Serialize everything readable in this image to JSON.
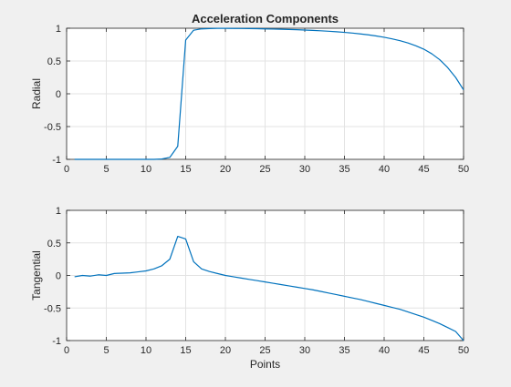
{
  "chart_data": [
    {
      "type": "line",
      "title": "Acceleration Components",
      "xlabel": "",
      "ylabel": "Radial",
      "xlim": [
        0,
        50
      ],
      "ylim": [
        -1,
        1
      ],
      "xticks": [
        "0",
        "5",
        "10",
        "15",
        "20",
        "25",
        "30",
        "35",
        "40",
        "45",
        "50"
      ],
      "yticks": [
        "-1",
        "-0.5",
        "0",
        "0.5",
        "1"
      ],
      "grid": true,
      "series": [
        {
          "color": "#0072bd",
          "x": [
            1,
            2,
            3,
            4,
            5,
            6,
            7,
            8,
            9,
            10,
            11,
            12,
            13,
            14,
            15,
            16,
            17,
            18,
            19,
            20,
            21,
            22,
            23,
            24,
            25,
            26,
            27,
            28,
            29,
            30,
            31,
            32,
            33,
            34,
            35,
            36,
            37,
            38,
            39,
            40,
            41,
            42,
            43,
            44,
            45,
            46,
            47,
            48,
            49,
            50
          ],
          "y": [
            -1,
            -1,
            -1,
            -1,
            -1,
            -1,
            -1,
            -1,
            -1,
            -1,
            -1,
            -0.995,
            -0.97,
            -0.8,
            0.82,
            0.97,
            0.99,
            0.995,
            0.998,
            0.998,
            0.997,
            0.996,
            0.995,
            0.993,
            0.99,
            0.987,
            0.984,
            0.981,
            0.977,
            0.972,
            0.967,
            0.961,
            0.954,
            0.946,
            0.937,
            0.926,
            0.913,
            0.899,
            0.882,
            0.862,
            0.838,
            0.81,
            0.775,
            0.732,
            0.68,
            0.61,
            0.52,
            0.4,
            0.25,
            0.06
          ]
        }
      ]
    },
    {
      "type": "line",
      "title": "",
      "xlabel": "Points",
      "ylabel": "Tangential",
      "xlim": [
        0,
        50
      ],
      "ylim": [
        -1,
        1
      ],
      "xticks": [
        "0",
        "5",
        "10",
        "15",
        "20",
        "25",
        "30",
        "35",
        "40",
        "45",
        "50"
      ],
      "yticks": [
        "-1",
        "-0.5",
        "0",
        "0.5",
        "1"
      ],
      "grid": true,
      "series": [
        {
          "color": "#0072bd",
          "x": [
            1,
            2,
            3,
            4,
            5,
            6,
            7,
            8,
            9,
            10,
            11,
            12,
            13,
            14,
            15,
            16,
            17,
            18,
            19,
            20,
            21,
            22,
            23,
            24,
            25,
            26,
            27,
            28,
            29,
            30,
            31,
            32,
            33,
            34,
            35,
            36,
            37,
            38,
            39,
            40,
            41,
            42,
            43,
            44,
            45,
            46,
            47,
            48,
            49,
            50
          ],
          "y": [
            -0.02,
            0,
            -0.01,
            0.01,
            0,
            0.03,
            0.035,
            0.04,
            0.055,
            0.07,
            0.1,
            0.15,
            0.25,
            0.6,
            0.56,
            0.21,
            0.1,
            0.06,
            0.03,
            0,
            -0.02,
            -0.04,
            -0.06,
            -0.08,
            -0.1,
            -0.12,
            -0.14,
            -0.16,
            -0.18,
            -0.2,
            -0.22,
            -0.245,
            -0.27,
            -0.295,
            -0.32,
            -0.345,
            -0.37,
            -0.4,
            -0.43,
            -0.46,
            -0.49,
            -0.52,
            -0.56,
            -0.6,
            -0.64,
            -0.69,
            -0.74,
            -0.8,
            -0.86,
            -1
          ]
        }
      ]
    }
  ]
}
